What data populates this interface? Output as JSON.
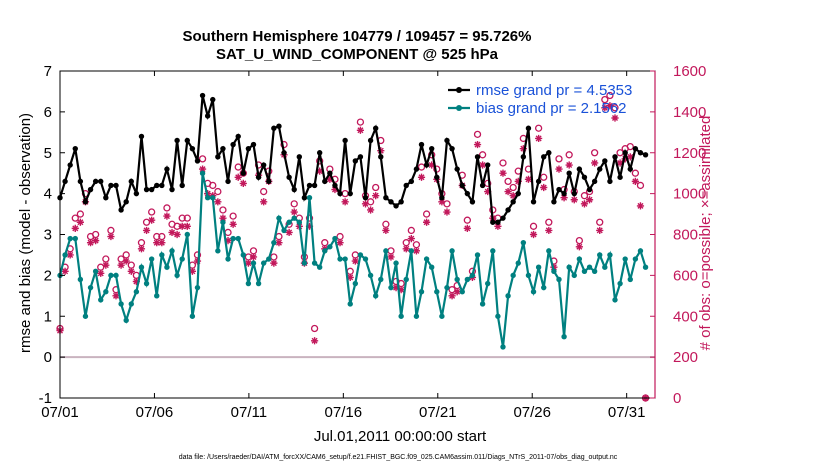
{
  "chart_data": {
    "type": "line",
    "title": "Southern Hemisphere 104779 / 109457 = 95.726%",
    "subtitle": "SAT_U_WIND_COMPONENT @ 525 hPa",
    "xlabel": "Jul.01,2011 00:00:00 start",
    "ylabel": "rmse and bias (model - observation)",
    "y2label": "# of obs: o=possible; ×=assimilated",
    "footer": "data file: /Users/raeder/DAI/ATM_forcXX/CAM6_setup/f.e21.FHIST_BGC.f09_025.CAM6assim.011/Diags_NTrS_2011-07/obs_diag_output.nc",
    "xlim": [
      0,
      31.5
    ],
    "ylim": [
      -1,
      7
    ],
    "y2lim": [
      0,
      1600
    ],
    "x_ticks": [
      0,
      5,
      10,
      15,
      20,
      25,
      30
    ],
    "x_tick_labels": [
      "07/01",
      "07/06",
      "07/11",
      "07/16",
      "07/21",
      "07/26",
      "07/31"
    ],
    "y_ticks": [
      -1,
      0,
      1,
      2,
      3,
      4,
      5,
      6,
      7
    ],
    "y2_ticks": [
      0,
      200,
      400,
      600,
      800,
      1000,
      1200,
      1400,
      1600
    ],
    "series": [
      {
        "name": "rmse grand pr = 4.5353",
        "color": "#000000",
        "marker": "circle",
        "values": [
          3.9,
          4.3,
          4.7,
          5.1,
          4.3,
          3.8,
          4.1,
          4.3,
          4.3,
          3.9,
          4.2,
          4.2,
          3.6,
          3.8,
          4.3,
          4.0,
          5.4,
          4.1,
          4.1,
          4.2,
          4.2,
          4.6,
          4.1,
          5.3,
          4.2,
          5.3,
          5.1,
          4.8,
          6.4,
          5.9,
          6.3,
          4.9,
          5.1,
          4.3,
          5.2,
          5.4,
          4.5,
          5.1,
          5.2,
          4.4,
          4.7,
          4.3,
          5.6,
          5.65,
          5.0,
          4.4,
          4.1,
          4.9,
          3.9,
          4.2,
          4.2,
          5.0,
          4.3,
          4.5,
          4.2,
          4.0,
          5.3,
          4.0,
          4.8,
          4.9,
          3.9,
          5.3,
          5.6,
          4.9,
          3.9,
          3.8,
          3.7,
          3.8,
          4.2,
          4.3,
          4.6,
          5.2,
          4.7,
          5.1,
          4.4,
          3.9,
          5.3,
          5.1,
          4.6,
          4.2,
          4.0,
          3.8,
          4.9,
          4.2,
          4.7,
          3.3,
          3.3,
          3.4,
          3.6,
          3.8,
          4.0,
          4.9,
          5.6,
          3.8,
          4.3,
          4.9,
          5.0,
          3.8,
          4.1,
          4.0,
          4.5,
          4.0,
          4.6,
          4.4,
          4.1,
          4.3,
          4.6,
          4.8,
          4.3,
          4.9,
          4.4,
          5.0,
          4.6,
          5.1,
          5.0,
          4.95
        ]
      },
      {
        "name": "bias grand pr = 2.1562",
        "color": "#008080",
        "marker": "circle",
        "values": [
          2.0,
          2.5,
          2.9,
          2.9,
          1.9,
          1.0,
          1.7,
          2.1,
          1.4,
          1.6,
          2.0,
          2.0,
          1.3,
          0.9,
          1.3,
          1.6,
          2.2,
          1.8,
          2.4,
          1.5,
          2.5,
          2.2,
          2.6,
          2.0,
          2.4,
          3.0,
          1.0,
          1.7,
          4.5,
          3.9,
          3.9,
          2.6,
          3.3,
          2.4,
          2.9,
          2.9,
          2.5,
          1.8,
          2.3,
          1.8,
          2.3,
          2.4,
          2.8,
          3.4,
          3.1,
          3.3,
          3.4,
          3.3,
          2.3,
          3.9,
          2.3,
          2.2,
          2.6,
          2.7,
          2.9,
          2.4,
          2.4,
          1.3,
          1.8,
          2.5,
          2.4,
          2.0,
          1.5,
          1.9,
          2.6,
          1.7,
          2.3,
          1.0,
          1.9,
          2.6,
          1.0,
          1.6,
          2.4,
          2.2,
          1.6,
          1.0,
          1.7,
          2.6,
          1.9,
          1.6,
          1.9,
          2.0,
          2.5,
          1.3,
          1.8,
          2.6,
          1.0,
          0.25,
          1.5,
          2.0,
          2.3,
          2.8,
          2.0,
          1.6,
          2.2,
          1.7,
          2.6,
          2.1,
          1.9,
          0.5,
          2.2,
          2.0,
          2.4,
          2.1,
          2.2,
          2.1,
          2.5,
          2.2,
          2.5,
          1.4,
          1.8,
          2.4,
          1.9,
          2.4,
          2.6,
          2.2
        ]
      }
    ],
    "obs_possible": [
      340,
      640,
      730,
      880,
      900,
      1000,
      790,
      800,
      640,
      680,
      820,
      530,
      680,
      700,
      650,
      600,
      760,
      860,
      910,
      790,
      790,
      930,
      850,
      840,
      880,
      880,
      650,
      700,
      1170,
      1050,
      1040,
      1010,
      920,
      810,
      890,
      1130,
      1100,
      690,
      720,
      1140,
      1010,
      1110,
      690,
      790,
      1240,
      850,
      950,
      880,
      690,
      880,
      340,
      1160,
      760,
      1120,
      1070,
      790,
      1000,
      620,
      700,
      1350,
      990,
      960,
      1030,
      1260,
      850,
      720,
      570,
      560,
      760,
      820,
      750,
      1130,
      900,
      1190,
      1120,
      1000,
      950,
      530,
      550,
      1090,
      870,
      620,
      1290,
      1190,
      1050,
      920,
      880,
      1150,
      1060,
      1030,
      1110,
      1270,
      1120,
      840,
      1320,
      1080,
      860,
      670,
      1170,
      1020,
      1190,
      1010,
      770,
      990,
      1010,
      1200,
      860,
      1460,
      1480,
      1420,
      1200,
      1220,
      1230,
      1100,
      1040,
      0
    ],
    "obs_assimilated": [
      330,
      620,
      700,
      830,
      860,
      960,
      760,
      770,
      610,
      650,
      790,
      500,
      650,
      670,
      620,
      570,
      730,
      820,
      870,
      760,
      760,
      890,
      810,
      800,
      840,
      840,
      620,
      670,
      1120,
      1000,
      990,
      960,
      880,
      770,
      850,
      1080,
      1050,
      660,
      690,
      1090,
      960,
      1060,
      660,
      760,
      1190,
      810,
      910,
      840,
      660,
      840,
      280,
      1110,
      730,
      1070,
      1020,
      760,
      960,
      590,
      670,
      1310,
      950,
      920,
      990,
      1210,
      820,
      690,
      540,
      530,
      730,
      780,
      720,
      1080,
      860,
      1140,
      1070,
      960,
      910,
      500,
      520,
      1040,
      830,
      590,
      1240,
      1140,
      1010,
      880,
      840,
      1100,
      1010,
      990,
      1060,
      1220,
      1070,
      800,
      1270,
      1030,
      820,
      640,
      1120,
      980,
      1140,
      970,
      740,
      950,
      970,
      1150,
      820,
      1420,
      1430,
      1370,
      1150,
      1170,
      1180,
      1060,
      940,
      0
    ],
    "obs_color": "#c2185b",
    "zero_line_color": "#c9b3bf",
    "legend": [
      "rmse grand pr = 4.5353",
      "bias grand pr = 2.1562"
    ]
  }
}
